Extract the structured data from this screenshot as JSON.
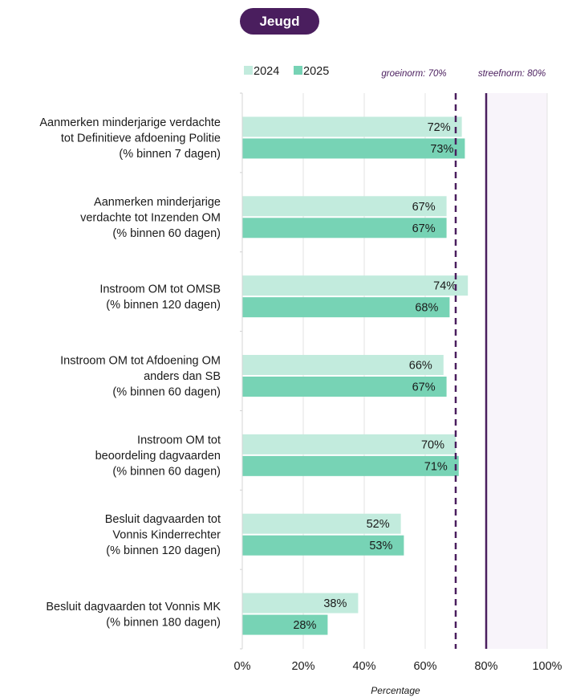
{
  "badge": "Jeugd",
  "chart_data": {
    "type": "bar",
    "orientation": "horizontal",
    "categories": [
      [
        "Aanmerken minderjarige verdachte",
        "tot Definitieve afdoening Politie",
        "(% binnen 7 dagen)"
      ],
      [
        "Aanmerken minderjarige",
        "verdachte tot Inzenden OM",
        "(% binnen 60 dagen)"
      ],
      [
        "Instroom OM tot OMSB",
        "(% binnen 120 dagen)"
      ],
      [
        "Instroom OM tot Afdoening OM",
        "anders dan SB",
        "(% binnen 60 dagen)"
      ],
      [
        "Instroom OM tot",
        "beoordeling dagvaarden",
        "(% binnen 60 dagen)"
      ],
      [
        "Besluit dagvaarden tot",
        "Vonnis Kinderrechter",
        "(% binnen 120 dagen)"
      ],
      [
        "Besluit dagvaarden tot Vonnis MK",
        "(% binnen 180 dagen)"
      ]
    ],
    "series": [
      {
        "name": "2024",
        "color": "#c2ebdd",
        "values": [
          72,
          67,
          74,
          66,
          70,
          52,
          38
        ]
      },
      {
        "name": "2025",
        "color": "#77d3b5",
        "values": [
          73,
          67,
          68,
          67,
          71,
          53,
          28
        ]
      }
    ],
    "xticks": [
      "0%",
      "20%",
      "40%",
      "60%",
      "80%",
      "100%"
    ],
    "xlim": [
      0,
      100
    ],
    "xlabel": "Percentage",
    "ylabel": "",
    "grid": true,
    "legend_position": "top-left",
    "reference_lines": [
      {
        "label": "groeinorm: 70%",
        "value": 70,
        "style": "dashed",
        "color": "#4a1e5e"
      },
      {
        "label": "streefnorm: 80%",
        "value": 80,
        "style": "solid",
        "color": "#4a1e5e"
      }
    ],
    "shaded_region": {
      "from": 80,
      "to": 100,
      "color": "#f8f4fa"
    }
  }
}
